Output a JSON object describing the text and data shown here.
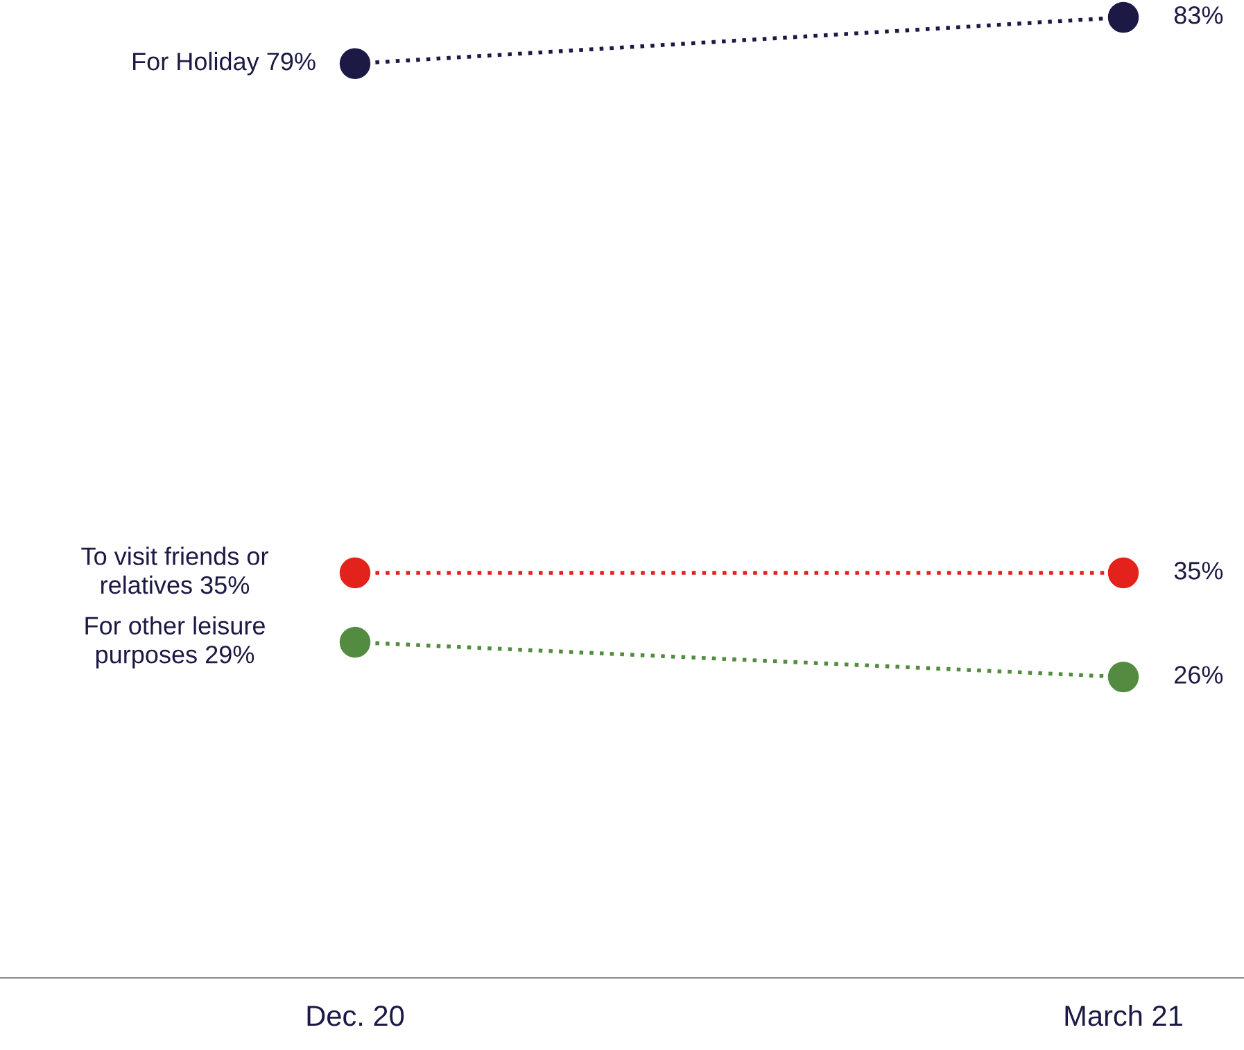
{
  "chart_data": {
    "type": "line",
    "categories": [
      "Dec. 20",
      "March 21"
    ],
    "marker": "circle",
    "line_style": "dotted",
    "grid": false,
    "legend": false,
    "tick_labels": "x",
    "series": [
      {
        "name": "For Holiday",
        "color": "#1c1a45",
        "values": [
          79,
          83
        ],
        "value_labels": [
          "79%",
          "83%"
        ]
      },
      {
        "name": "To visit friends or relatives",
        "color": "#e3231b",
        "values": [
          35,
          35
        ],
        "value_labels": [
          "35%",
          "35%"
        ]
      },
      {
        "name": "For other leisure purposes",
        "color": "#538c41",
        "values": [
          29,
          26
        ],
        "value_labels": [
          "29%",
          "26%"
        ]
      }
    ]
  }
}
